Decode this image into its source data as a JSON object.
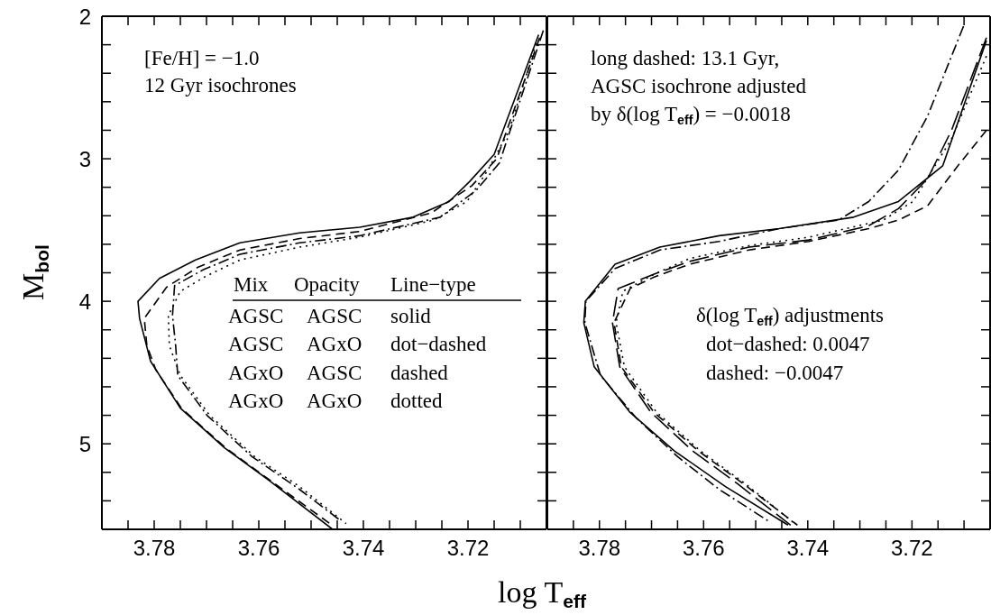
{
  "chart_data": [
    {
      "type": "line",
      "ylabel": "M$_{bol}$",
      "xlabel": "log T$_{eff}$",
      "xlim": [
        3.79,
        3.705
      ],
      "ylim": [
        5.6,
        2
      ],
      "legend": false,
      "marker": "none",
      "xticks": [
        {
          "value": 3.785,
          "label": null
        },
        3.78,
        {
          "value": 3.775,
          "label": null
        },
        {
          "value": 3.77,
          "label": null
        },
        {
          "value": 3.765,
          "label": null
        },
        3.76,
        {
          "value": 3.755,
          "label": null
        },
        {
          "value": 3.75,
          "label": null
        },
        {
          "value": 3.745,
          "label": null
        },
        3.74,
        {
          "value": 3.735,
          "label": null
        },
        {
          "value": 3.73,
          "label": null
        },
        {
          "value": 3.725,
          "label": null
        },
        3.72,
        {
          "value": 3.715,
          "label": null
        },
        {
          "value": 3.71,
          "label": null
        }
      ],
      "yticks": [
        2,
        {
          "value": 2.2,
          "label": null
        },
        {
          "value": 2.4,
          "label": null
        },
        {
          "value": 2.6,
          "label": null
        },
        {
          "value": 2.8,
          "label": null
        },
        3,
        {
          "value": 3.2,
          "label": null
        },
        {
          "value": 3.4,
          "label": null
        },
        {
          "value": 3.6,
          "label": null
        },
        {
          "value": 3.8,
          "label": null
        },
        4,
        {
          "value": 4.2,
          "label": null
        },
        {
          "value": 4.4,
          "label": null
        },
        {
          "value": 4.6,
          "label": null
        },
        {
          "value": 4.8,
          "label": null
        },
        5,
        {
          "value": 5.2,
          "label": null
        },
        {
          "value": 5.4,
          "label": null
        }
      ],
      "annotations": [
        "[Fe/H] = −1.0",
        "12 Gyr isochrones",
        "Mix\tOpacity\tLine−type",
        "AGSC\tAGSC\tsolid",
        "AGSC\tAGxO\tdot−dashed",
        "AGxO\tAGSC\tdashed",
        "AGxO\tAGxO\tdotted"
      ],
      "series": [
        {
          "color": "#000000",
          "line_style": "solid",
          "x": [
            3.7065,
            3.715,
            3.7197,
            3.7236,
            3.7305,
            3.7407,
            3.7522,
            3.7636,
            3.7721,
            3.779,
            3.7831,
            3.7828,
            3.7807,
            3.775,
            3.7665,
            3.7579,
            3.7459
          ],
          "values": [
            2.13,
            2.97,
            3.16,
            3.3,
            3.41,
            3.48,
            3.52,
            3.59,
            3.71,
            3.84,
            4.0,
            4.12,
            4.42,
            4.75,
            5.03,
            5.26,
            5.6
          ]
        },
        {
          "color": "#000000",
          "line_style": "dashdot",
          "x": [
            3.7056,
            3.714,
            3.7184,
            3.7253,
            3.7407,
            3.7522,
            3.7636,
            3.7707,
            3.7761,
            3.7765,
            3.7759,
            3.7755,
            3.7699,
            3.7613,
            3.7522,
            3.7447
          ],
          "values": [
            2.1,
            3.03,
            3.22,
            3.41,
            3.54,
            3.59,
            3.67,
            3.78,
            3.89,
            4.1,
            4.31,
            4.52,
            4.8,
            5.09,
            5.32,
            5.53
          ]
        },
        {
          "color": "#000000",
          "line_style": "dashed",
          "x": [
            3.7063,
            3.7145,
            3.7193,
            3.727,
            3.7407,
            3.7522,
            3.7636,
            3.7716,
            3.7776,
            3.7819,
            3.7814,
            3.7797,
            3.7748,
            3.7663,
            3.7577,
            3.7464
          ],
          "values": [
            2.15,
            3.0,
            3.19,
            3.38,
            3.51,
            3.56,
            3.64,
            3.76,
            3.9,
            4.12,
            4.31,
            4.48,
            4.75,
            5.03,
            5.26,
            5.56
          ]
        },
        {
          "color": "#000000",
          "line_style": "dotted",
          "x": [
            3.707,
            3.7121,
            3.7162,
            3.7202,
            3.7265,
            3.7407,
            3.7522,
            3.7636,
            3.7682,
            3.7704,
            3.775,
            3.7773,
            3.7771,
            3.775,
            3.7694,
            3.7608,
            3.7522,
            3.7433
          ],
          "values": [
            2.19,
            2.8,
            3.08,
            3.3,
            3.43,
            3.55,
            3.62,
            3.71,
            3.79,
            3.83,
            3.93,
            4.1,
            4.31,
            4.52,
            4.8,
            5.09,
            5.3,
            5.56
          ]
        }
      ]
    },
    {
      "type": "line",
      "xlim": [
        3.79,
        3.705
      ],
      "ylim": [
        5.6,
        2
      ],
      "legend": false,
      "marker": "none",
      "tick_labels": "x",
      "xticks": [
        {
          "value": 3.785,
          "label": null
        },
        3.78,
        {
          "value": 3.775,
          "label": null
        },
        {
          "value": 3.77,
          "label": null
        },
        {
          "value": 3.765,
          "label": null
        },
        3.76,
        {
          "value": 3.755,
          "label": null
        },
        {
          "value": 3.75,
          "label": null
        },
        {
          "value": 3.745,
          "label": null
        },
        3.74,
        {
          "value": 3.735,
          "label": null
        },
        {
          "value": 3.73,
          "label": null
        },
        {
          "value": 3.725,
          "label": null
        },
        3.72,
        {
          "value": 3.715,
          "label": null
        },
        {
          "value": 3.71,
          "label": null
        }
      ],
      "yticks": [
        2,
        {
          "value": 2.2,
          "label": null
        },
        {
          "value": 2.4,
          "label": null
        },
        {
          "value": 2.6,
          "label": null
        },
        {
          "value": 2.8,
          "label": null
        },
        3,
        {
          "value": 3.2,
          "label": null
        },
        {
          "value": 3.4,
          "label": null
        },
        {
          "value": 3.6,
          "label": null
        },
        {
          "value": 3.8,
          "label": null
        },
        4,
        {
          "value": 4.2,
          "label": null
        },
        {
          "value": 4.4,
          "label": null
        },
        {
          "value": 4.6,
          "label": null
        },
        {
          "value": 4.8,
          "label": null
        },
        5,
        {
          "value": 5.2,
          "label": null
        },
        {
          "value": 5.4,
          "label": null
        }
      ],
      "annotations": [
        "long dashed: 13.1 Gyr,",
        "AGSC isochrone adjusted",
        "by δ(log T$_{eff}$) = −0.0018",
        "δ(log T$_{eff}$) adjustments",
        "dot−dashed: 0.0047",
        "dashed: −0.0047"
      ],
      "series": [
        {
          "color": "#000000",
          "line_style": "solid",
          "x": [
            3.7057,
            3.7141,
            3.7226,
            3.7312,
            3.7455,
            3.757,
            3.7684,
            3.777,
            3.7827,
            3.783,
            3.781,
            3.7741,
            3.7656,
            3.7558,
            3.7438
          ],
          "values": [
            2.17,
            3.05,
            3.3,
            3.41,
            3.49,
            3.54,
            3.62,
            3.74,
            4.0,
            4.15,
            4.46,
            4.78,
            5.05,
            5.3,
            5.57
          ]
        },
        {
          "color": "#000000",
          "line_style": "dashdot",
          "x": [
            3.7101,
            3.717,
            3.7226,
            3.7283,
            3.7341,
            3.7455,
            3.757,
            3.7684,
            3.777,
            3.7826,
            3.7828,
            3.7798,
            3.7729,
            3.765,
            3.757,
            3.7472
          ],
          "values": [
            2.07,
            2.7,
            3.08,
            3.3,
            3.43,
            3.49,
            3.58,
            3.64,
            3.77,
            4.0,
            4.15,
            4.52,
            4.82,
            5.09,
            5.32,
            5.55
          ]
        },
        {
          "color": "#000000",
          "line_style": "dashed",
          "x": [
            3.7057,
            3.7112,
            3.717,
            3.7226,
            3.7283,
            3.7398,
            3.7513,
            3.7627,
            3.7695,
            3.7741,
            3.7772,
            3.7758,
            3.7695,
            3.761,
            3.7524,
            3.742
          ],
          "values": [
            2.8,
            3.05,
            3.33,
            3.43,
            3.49,
            3.58,
            3.64,
            3.74,
            3.83,
            3.91,
            4.15,
            4.46,
            4.78,
            5.05,
            5.28,
            5.57
          ]
        },
        {
          "color": "#000000",
          "line_style": "longdash",
          "x": [
            3.7057,
            3.7124,
            3.717,
            3.7226,
            3.7283,
            3.7398,
            3.7513,
            3.7627,
            3.7695,
            3.7764,
            3.7775,
            3.7761,
            3.7701,
            3.7621,
            3.7535,
            3.7433
          ],
          "values": [
            2.15,
            2.8,
            3.14,
            3.35,
            3.47,
            3.57,
            3.62,
            3.72,
            3.81,
            3.91,
            4.15,
            4.46,
            4.78,
            5.05,
            5.28,
            5.57
          ]
        },
        {
          "color": "#000000",
          "line_style": "dotted",
          "x": [
            3.7057,
            3.7124,
            3.7198,
            3.7255,
            3.7398,
            3.7513,
            3.7627,
            3.7695,
            3.7755,
            3.7768,
            3.7752,
            3.769,
            3.7606,
            3.752,
            3.7425
          ],
          "values": [
            2.28,
            2.86,
            3.3,
            3.43,
            3.55,
            3.61,
            3.7,
            3.81,
            3.93,
            4.15,
            4.46,
            4.78,
            5.05,
            5.28,
            5.56
          ]
        }
      ]
    }
  ]
}
